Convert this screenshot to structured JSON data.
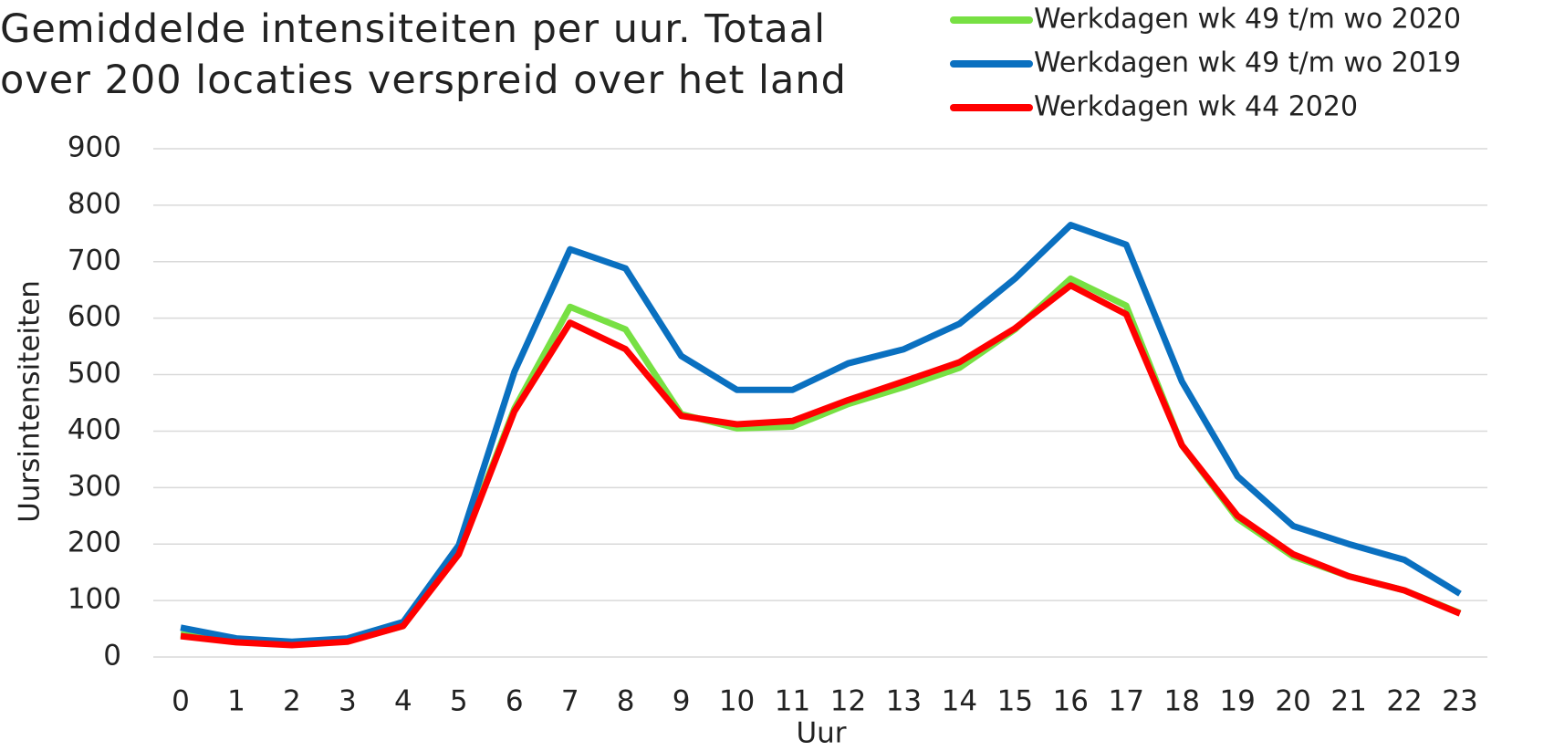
{
  "chart_data": {
    "type": "line",
    "title": "Gemiddelde intensiteiten per uur. Totaal over 200 locaties verspreid over het land",
    "x_label": "Uur",
    "y_label": "Uursintensiteiten",
    "categories": [
      "0",
      "1",
      "2",
      "3",
      "4",
      "5",
      "6",
      "7",
      "8",
      "9",
      "10",
      "11",
      "12",
      "13",
      "14",
      "15",
      "16",
      "17",
      "18",
      "19",
      "20",
      "21",
      "22",
      "23"
    ],
    "series": [
      {
        "name": "Werkdagen wk 49 t/m wo 2020",
        "color": "#77e043",
        "values": [
          40,
          28,
          22,
          28,
          55,
          185,
          440,
          620,
          580,
          430,
          405,
          408,
          448,
          478,
          512,
          580,
          670,
          622,
          375,
          245,
          178,
          143,
          118,
          78
        ]
      },
      {
        "name": "Werkdagen wk 49 t/m wo 2019",
        "color": "#0a70c0",
        "values": [
          52,
          33,
          27,
          33,
          62,
          198,
          505,
          722,
          688,
          533,
          473,
          473,
          520,
          545,
          590,
          670,
          765,
          730,
          488,
          320,
          232,
          200,
          172,
          112
        ]
      },
      {
        "name": "Werkdagen wk 44 2020",
        "color": "#ff0000",
        "values": [
          37,
          26,
          21,
          27,
          55,
          182,
          435,
          592,
          545,
          427,
          412,
          418,
          455,
          488,
          522,
          582,
          658,
          607,
          375,
          250,
          182,
          143,
          118,
          77
        ]
      }
    ],
    "ylim": [
      0,
      900
    ],
    "yticks": [
      0,
      100,
      200,
      300,
      400,
      500,
      600,
      700,
      800,
      900
    ],
    "grid": true
  }
}
